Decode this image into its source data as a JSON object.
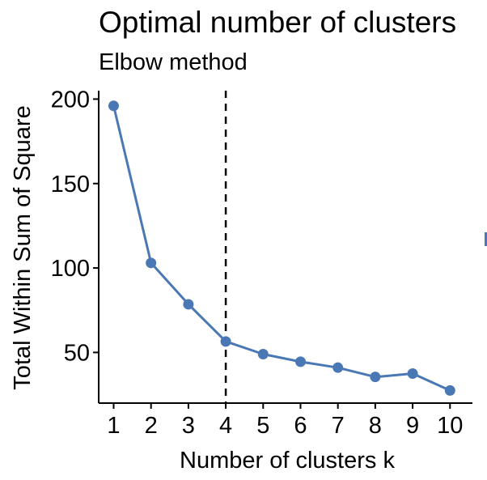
{
  "chart_data": {
    "type": "line",
    "title": "Optimal number of clusters",
    "subtitle": "Elbow method",
    "xlabel": "Number of clusters k",
    "ylabel": "Total Within Sum of Square",
    "x": [
      1,
      2,
      3,
      4,
      5,
      6,
      7,
      8,
      9,
      10
    ],
    "y": [
      196,
      103,
      78.5,
      56.5,
      49,
      44.5,
      41,
      35.5,
      37.5,
      27.5
    ],
    "xlim": [
      0.6,
      10.6
    ],
    "ylim": [
      20,
      205
    ],
    "x_ticks": [
      "1",
      "2",
      "3",
      "4",
      "5",
      "6",
      "7",
      "8",
      "9",
      "10"
    ],
    "y_ticks": [
      50,
      100,
      150,
      200
    ],
    "y_tick_labels": [
      "50",
      "100",
      "150",
      "200"
    ],
    "optimal_k": 4,
    "reference_line": "dashed vertical",
    "grid": false,
    "legend": "none",
    "color": "#4a78b5"
  }
}
